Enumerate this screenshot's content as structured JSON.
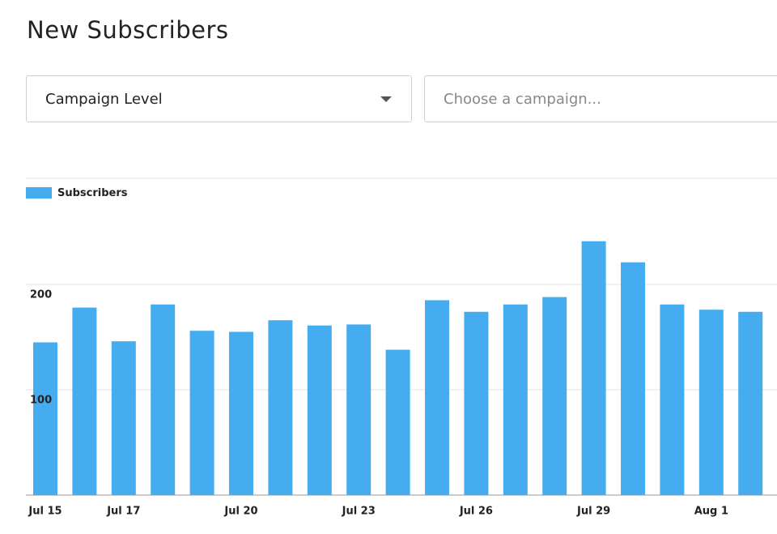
{
  "header": {
    "title": "New Subscribers"
  },
  "controls": {
    "level": "Campaign Level",
    "campaign_placeholder": "Choose a campaign..."
  },
  "chart_data": {
    "type": "bar",
    "categories": [
      "Jul 15",
      null,
      "Jul 17",
      null,
      null,
      "Jul 20",
      null,
      null,
      "Jul 23",
      null,
      null,
      "Jul 26",
      null,
      null,
      "Jul 29",
      null,
      null,
      "Aug 1",
      null
    ],
    "series": [
      {
        "name": "Subscribers",
        "color": "#45adef",
        "values": [
          145,
          178,
          146,
          181,
          156,
          155,
          166,
          161,
          162,
          138,
          185,
          174,
          181,
          188,
          241,
          221,
          181,
          176,
          174
        ]
      }
    ],
    "ylim": [
      0,
      300
    ],
    "yticks": [
      100,
      200
    ],
    "grid": true
  }
}
